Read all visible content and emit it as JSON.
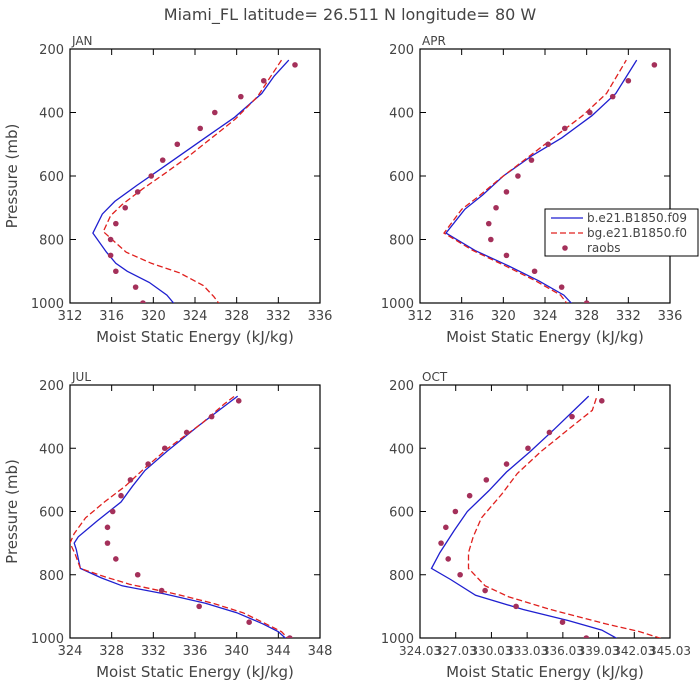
{
  "figure": {
    "title": "Miami_FL   latitude= 26.511 N longitude= 80 W"
  },
  "colors": {
    "model_b": "#1f1fd0",
    "model_bg": "#e0201e",
    "raobs": "#a4305a",
    "axis": "#000000",
    "text": "#444444"
  },
  "chart_data": [
    {
      "type": "line",
      "panel": "JAN",
      "xlabel": "Moist Static Energy (kJ/kg)",
      "ylabel": "Pressure (mb)",
      "xlim": [
        312,
        336
      ],
      "ylim": [
        1000,
        200
      ],
      "x_ticks": [
        "312",
        "316",
        "320",
        "324",
        "328",
        "332",
        "336"
      ],
      "y_ticks": [
        "200",
        "400",
        "600",
        "800",
        "1000"
      ],
      "series": [
        {
          "key": "model_b",
          "style": "solid",
          "points": [
            [
              322.2,
              1010
            ],
            [
              321.3,
              975
            ],
            [
              319.6,
              935
            ],
            [
              317.5,
              900
            ],
            [
              316.4,
              875
            ],
            [
              315.5,
              840
            ],
            [
              314.2,
              780
            ],
            [
              315.1,
              720
            ],
            [
              316.3,
              680
            ],
            [
              318.4,
              630
            ],
            [
              320.6,
              580
            ],
            [
              323.0,
              525
            ],
            [
              325.4,
              470
            ],
            [
              327.8,
              415
            ],
            [
              330.4,
              340
            ],
            [
              331.6,
              285
            ],
            [
              333.0,
              235
            ]
          ]
        },
        {
          "key": "model_bg",
          "style": "dashed",
          "points": [
            [
              326.5,
              1010
            ],
            [
              325.8,
              980
            ],
            [
              324.8,
              945
            ],
            [
              322.5,
              905
            ],
            [
              319.8,
              875
            ],
            [
              317.4,
              840
            ],
            [
              315.2,
              775
            ],
            [
              315.9,
              725
            ],
            [
              317.0,
              690
            ],
            [
              319.0,
              640
            ],
            [
              321.2,
              590
            ],
            [
              323.3,
              540
            ],
            [
              325.6,
              480
            ],
            [
              327.9,
              420
            ],
            [
              330.0,
              350
            ],
            [
              331.5,
              275
            ],
            [
              332.3,
              235
            ]
          ]
        },
        {
          "key": "raobs",
          "style": "markers",
          "points": [
            [
              319.0,
              1000
            ],
            [
              318.3,
              950
            ],
            [
              316.4,
              900
            ],
            [
              315.9,
              850
            ],
            [
              315.9,
              800
            ],
            [
              316.4,
              750
            ],
            [
              317.3,
              700
            ],
            [
              318.5,
              650
            ],
            [
              319.8,
              600
            ],
            [
              320.9,
              550
            ],
            [
              322.3,
              500
            ],
            [
              324.5,
              450
            ],
            [
              325.9,
              400
            ],
            [
              328.4,
              350
            ],
            [
              330.6,
              300
            ],
            [
              333.6,
              250
            ]
          ]
        }
      ]
    },
    {
      "type": "line",
      "panel": "APR",
      "xlabel": "Moist Static Energy (kJ/kg)",
      "ylabel": "",
      "xlim": [
        312,
        336
      ],
      "ylim": [
        1000,
        200
      ],
      "x_ticks": [
        "312",
        "316",
        "320",
        "324",
        "328",
        "332",
        "336"
      ],
      "y_ticks": [
        "200",
        "400",
        "600",
        "800",
        "1000"
      ],
      "legend": {
        "position": "right",
        "entries": [
          {
            "key": "model_b",
            "label": "b.e21.B1850.f09"
          },
          {
            "key": "model_bg",
            "label": "bg.e21.B1850.f0"
          },
          {
            "key": "raobs",
            "label": "raobs"
          }
        ]
      },
      "series": [
        {
          "key": "model_b",
          "style": "solid",
          "points": [
            [
              326.8,
              1010
            ],
            [
              325.8,
              975
            ],
            [
              323.4,
              930
            ],
            [
              320.3,
              880
            ],
            [
              317.3,
              835
            ],
            [
              314.5,
              780
            ],
            [
              316.3,
              705
            ],
            [
              318.0,
              660
            ],
            [
              320.0,
              600
            ],
            [
              322.8,
              535
            ],
            [
              325.6,
              480
            ],
            [
              328.5,
              410
            ],
            [
              330.8,
              340
            ],
            [
              332.8,
              235
            ]
          ]
        },
        {
          "key": "model_bg",
          "style": "dashed",
          "points": [
            [
              326.3,
              1010
            ],
            [
              325.5,
              975
            ],
            [
              323.1,
              930
            ],
            [
              320.0,
              880
            ],
            [
              317.1,
              835
            ],
            [
              314.3,
              780
            ],
            [
              316.0,
              705
            ],
            [
              317.6,
              665
            ],
            [
              319.6,
              610
            ],
            [
              322.6,
              535
            ],
            [
              324.8,
              480
            ],
            [
              327.6,
              410
            ],
            [
              329.9,
              340
            ],
            [
              331.8,
              235
            ]
          ]
        },
        {
          "key": "raobs",
          "style": "markers",
          "points": [
            [
              328.0,
              1000
            ],
            [
              325.6,
              950
            ],
            [
              323.0,
              900
            ],
            [
              320.3,
              850
            ],
            [
              318.8,
              800
            ],
            [
              318.6,
              750
            ],
            [
              319.3,
              700
            ],
            [
              320.3,
              650
            ],
            [
              321.4,
              600
            ],
            [
              322.7,
              550
            ],
            [
              324.3,
              500
            ],
            [
              325.9,
              450
            ],
            [
              328.3,
              400
            ],
            [
              330.5,
              350
            ],
            [
              332.0,
              300
            ],
            [
              334.5,
              250
            ]
          ]
        }
      ]
    },
    {
      "type": "line",
      "panel": "JUL",
      "xlabel": "Moist Static Energy (kJ/kg)",
      "ylabel": "Pressure (mb)",
      "xlim": [
        324,
        348
      ],
      "ylim": [
        1000,
        200
      ],
      "x_ticks": [
        "324",
        "328",
        "332",
        "336",
        "340",
        "344",
        "348"
      ],
      "y_ticks": [
        "200",
        "400",
        "600",
        "800",
        "1000"
      ],
      "series": [
        {
          "key": "model_b",
          "style": "solid",
          "points": [
            [
              345.0,
              1010
            ],
            [
              344.0,
              980
            ],
            [
              342.5,
              955
            ],
            [
              340.0,
              920
            ],
            [
              337.0,
              890
            ],
            [
              333.0,
              860
            ],
            [
              329.0,
              835
            ],
            [
              327.0,
              810
            ],
            [
              325.0,
              780
            ],
            [
              324.6,
              720
            ],
            [
              324.4,
              700
            ],
            [
              324.8,
              680
            ],
            [
              326.6,
              630
            ],
            [
              328.9,
              570
            ],
            [
              330.0,
              520
            ],
            [
              331.2,
              470
            ],
            [
              333.3,
              410
            ],
            [
              336.3,
              330
            ],
            [
              340.1,
              235
            ]
          ]
        },
        {
          "key": "model_bg",
          "style": "dashed",
          "points": [
            [
              345.2,
              1010
            ],
            [
              344.3,
              980
            ],
            [
              342.8,
              955
            ],
            [
              340.6,
              920
            ],
            [
              337.7,
              890
            ],
            [
              334.0,
              860
            ],
            [
              329.7,
              830
            ],
            [
              327.2,
              805
            ],
            [
              325.0,
              780
            ],
            [
              324.5,
              735
            ],
            [
              324.0,
              700
            ],
            [
              324.4,
              670
            ],
            [
              325.5,
              620
            ],
            [
              327.3,
              570
            ],
            [
              329.3,
              520
            ],
            [
              331.1,
              465
            ],
            [
              333.4,
              400
            ],
            [
              336.7,
              320
            ],
            [
              338.8,
              260
            ],
            [
              339.8,
              235
            ]
          ]
        },
        {
          "key": "raobs",
          "style": "markers",
          "points": [
            [
              345.1,
              1000
            ],
            [
              341.2,
              950
            ],
            [
              336.4,
              900
            ],
            [
              332.8,
              850
            ],
            [
              330.5,
              800
            ],
            [
              328.4,
              750
            ],
            [
              327.6,
              700
            ],
            [
              327.6,
              650
            ],
            [
              328.1,
              600
            ],
            [
              328.9,
              550
            ],
            [
              329.8,
              500
            ],
            [
              331.5,
              450
            ],
            [
              333.1,
              400
            ],
            [
              335.2,
              350
            ],
            [
              337.6,
              300
            ],
            [
              340.2,
              250
            ]
          ]
        }
      ]
    },
    {
      "type": "line",
      "panel": "OCT",
      "xlabel": "Moist Static Energy (kJ/kg)",
      "ylabel": "",
      "xlim": [
        324.03,
        345.03
      ],
      "ylim": [
        1000,
        200
      ],
      "x_ticks": [
        "324.03",
        "327.03",
        "330.03",
        "333.03",
        "336.03",
        "339.03",
        "342.03",
        "345.03"
      ],
      "y_ticks": [
        "200",
        "400",
        "600",
        "800",
        "1000"
      ],
      "series": [
        {
          "key": "model_b",
          "style": "solid",
          "points": [
            [
              341.0,
              1010
            ],
            [
              339.3,
              975
            ],
            [
              336.5,
              945
            ],
            [
              332.7,
              910
            ],
            [
              328.7,
              865
            ],
            [
              326.6,
              815
            ],
            [
              325.0,
              780
            ],
            [
              325.7,
              730
            ],
            [
              326.9,
              660
            ],
            [
              328.0,
              600
            ],
            [
              329.8,
              535
            ],
            [
              331.3,
              475
            ],
            [
              333.3,
              410
            ],
            [
              335.3,
              340
            ],
            [
              338.2,
              235
            ]
          ]
        },
        {
          "key": "model_bg",
          "style": "dashed",
          "points": [
            [
              345.0,
              1010
            ],
            [
              342.5,
              980
            ],
            [
              339.6,
              955
            ],
            [
              335.0,
              910
            ],
            [
              331.5,
              870
            ],
            [
              329.5,
              835
            ],
            [
              328.1,
              780
            ],
            [
              328.1,
              730
            ],
            [
              328.5,
              680
            ],
            [
              329.2,
              620
            ],
            [
              330.9,
              545
            ],
            [
              332.2,
              480
            ],
            [
              334.2,
              410
            ],
            [
              336.5,
              340
            ],
            [
              338.5,
              280
            ],
            [
              338.9,
              235
            ]
          ]
        },
        {
          "key": "raobs",
          "style": "markers",
          "points": [
            [
              338.0,
              1000
            ],
            [
              336.0,
              950
            ],
            [
              332.1,
              900
            ],
            [
              329.5,
              850
            ],
            [
              327.4,
              800
            ],
            [
              326.4,
              750
            ],
            [
              325.8,
              700
            ],
            [
              326.2,
              650
            ],
            [
              327.0,
              600
            ],
            [
              328.2,
              550
            ],
            [
              329.6,
              500
            ],
            [
              331.3,
              450
            ],
            [
              333.1,
              400
            ],
            [
              334.9,
              350
            ],
            [
              336.8,
              300
            ],
            [
              339.3,
              250
            ]
          ]
        }
      ]
    }
  ]
}
